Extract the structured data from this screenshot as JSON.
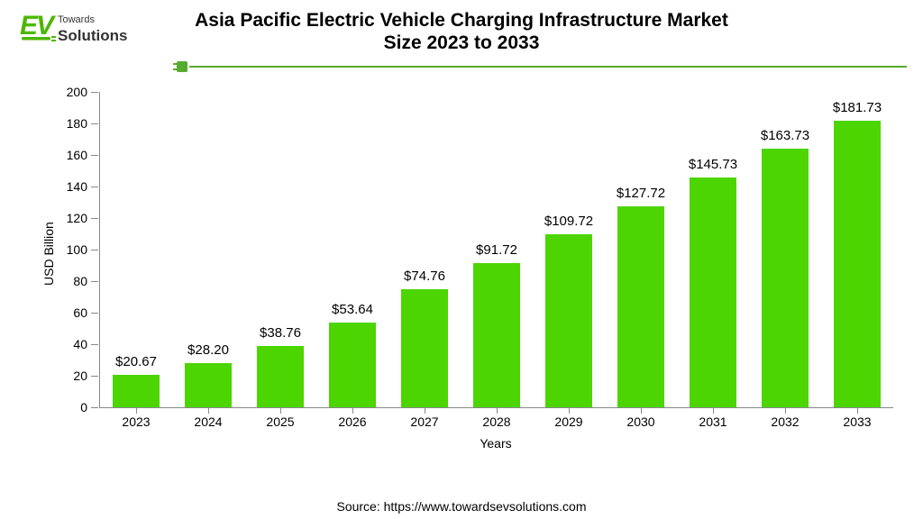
{
  "logo": {
    "text_top": "Towards",
    "text_bottom": "Solutions",
    "ev_text": "EV",
    "color": "#4cb700"
  },
  "title": {
    "line1": "Asia Pacific Electric Vehicle Charging Infrastructure Market",
    "line2": "Size 2023 to 2033",
    "fontsize": 21
  },
  "source": {
    "text": "Source: https://www.towardsevsolutions.com",
    "fontsize": 14
  },
  "chart": {
    "type": "bar",
    "ylabel": "USD Billion",
    "xlabel": "Years",
    "label_fontsize": 14,
    "tick_fontsize": 14,
    "barlabel_fontsize": 15,
    "ylim": [
      0,
      200
    ],
    "ytick_step": 20,
    "bar_color": "#4cd500",
    "bar_width_ratio": 0.64,
    "categories": [
      "2023",
      "2024",
      "2025",
      "2026",
      "2027",
      "2028",
      "2029",
      "2030",
      "2031",
      "2032",
      "2033"
    ],
    "values": [
      20.67,
      28.2,
      38.76,
      53.64,
      74.76,
      91.72,
      109.72,
      127.72,
      145.73,
      163.73,
      181.73
    ],
    "value_labels": [
      "$20.67",
      "$28.20",
      "$38.76",
      "$53.64",
      "$74.76",
      "$91.72",
      "$109.72",
      "$127.72",
      "$145.73",
      "$163.73",
      "$181.73"
    ],
    "axis_color": "#888888",
    "background_color": "#ffffff"
  }
}
